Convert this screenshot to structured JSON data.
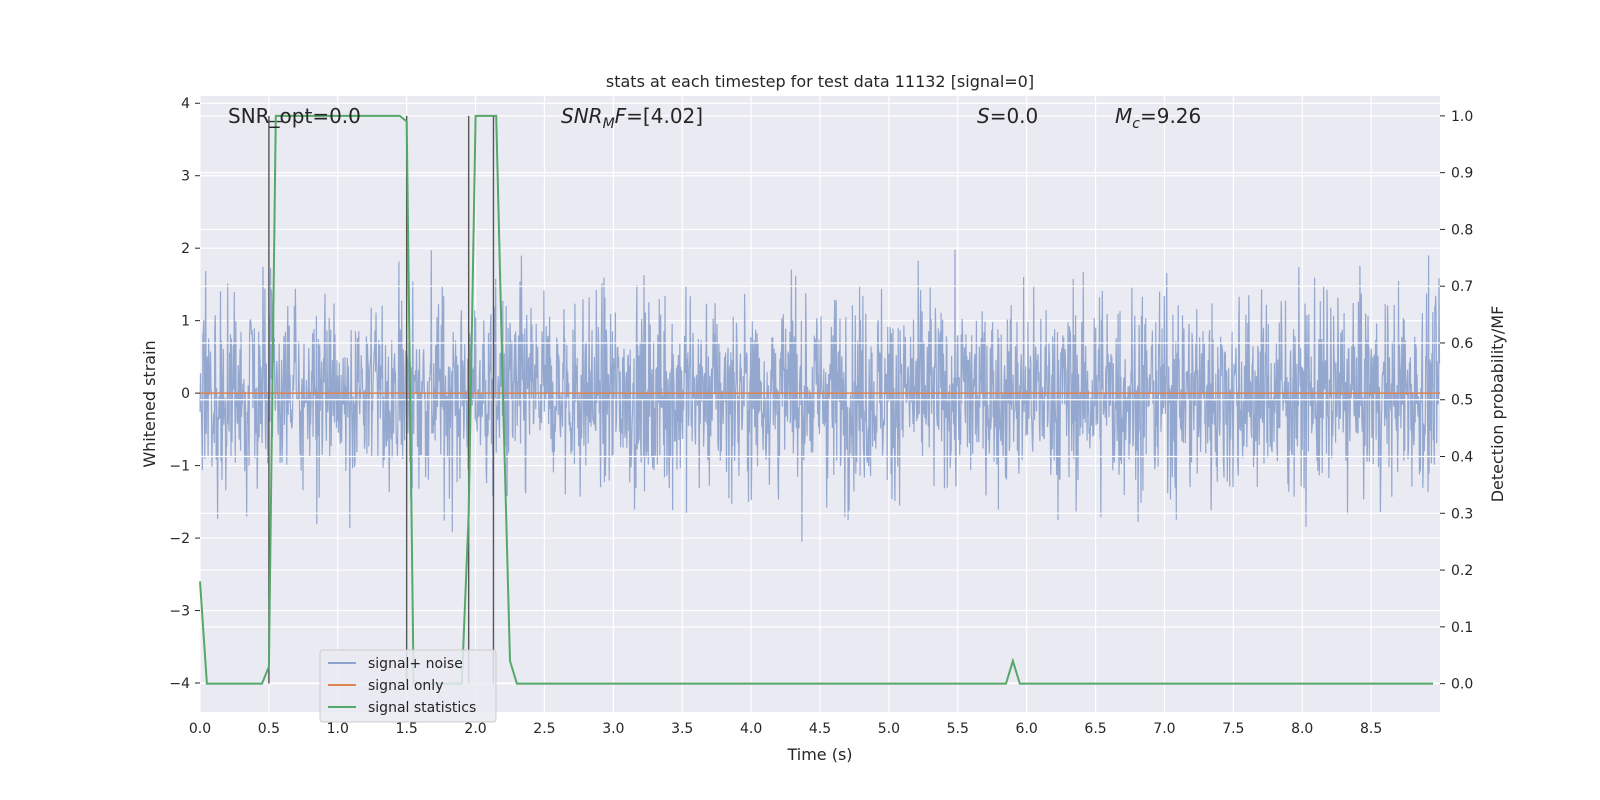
{
  "chart_data": {
    "type": "line",
    "title": "stats at each timestep for test data 11132 [signal=0]",
    "xlabel": "Time (s)",
    "ylabel": "Whitened strain",
    "ylabel_right": "Detection probability/MF",
    "xlim": [
      0.0,
      9.0
    ],
    "ylim": [
      -4.4,
      4.1
    ],
    "ylim_right": [
      -0.05,
      1.035
    ],
    "xticks": [
      "0.0",
      "0.5",
      "1.0",
      "1.5",
      "2.0",
      "2.5",
      "3.0",
      "3.5",
      "4.0",
      "4.5",
      "5.0",
      "5.5",
      "6.0",
      "6.5",
      "7.0",
      "7.5",
      "8.0",
      "8.5"
    ],
    "xtick_values": [
      0.0,
      0.5,
      1.0,
      1.5,
      2.0,
      2.5,
      3.0,
      3.5,
      4.0,
      4.5,
      5.0,
      5.5,
      6.0,
      6.5,
      7.0,
      7.5,
      8.0,
      8.5
    ],
    "yticks": [
      "−4",
      "−3",
      "−2",
      "−1",
      "0",
      "1",
      "2",
      "3",
      "4"
    ],
    "ytick_values": [
      -4,
      -3,
      -2,
      -1,
      0,
      1,
      2,
      3,
      4
    ],
    "yticks_right": [
      "0.0",
      "0.1",
      "0.2",
      "0.3",
      "0.4",
      "0.5",
      "0.6",
      "0.7",
      "0.8",
      "0.9",
      "1.0"
    ],
    "ytick_right_values": [
      0.0,
      0.1,
      0.2,
      0.3,
      0.4,
      0.5,
      0.6,
      0.7,
      0.8,
      0.9,
      1.0
    ],
    "grid": true,
    "legend_position": "lower-left",
    "annotations": [
      {
        "text": "SNR_opt=0.0",
        "x": 0.2,
        "y": 3.7
      },
      {
        "text": "SNR_MF=[4.02]",
        "x": 2.6,
        "y": 3.7
      },
      {
        "text": "S=0.0",
        "x": 5.6,
        "y": 3.7
      },
      {
        "text": "M_c=9.26",
        "x": 6.6,
        "y": 3.7
      }
    ],
    "vertical_markers": [
      0.5,
      1.5,
      1.95,
      2.13
    ],
    "series": [
      {
        "name": "signal+ noise",
        "color": "#8fa4cc",
        "kind": "noise",
        "amplitude_bulk": 1.5,
        "amplitude_peak": 3.6
      },
      {
        "name": "signal only",
        "color": "#dd8452",
        "kind": "flat",
        "y": 0.0
      },
      {
        "name": "signal statistics",
        "color": "#55a868",
        "axis": "right",
        "x": [
          0.0,
          0.05,
          0.1,
          0.45,
          0.5,
          0.55,
          0.6,
          1.45,
          1.5,
          1.55,
          1.9,
          1.95,
          2.0,
          2.1,
          2.15,
          2.2,
          2.25,
          2.3,
          5.8,
          5.85,
          5.9,
          5.95,
          6.0,
          8.95
        ],
        "y": [
          0.18,
          0.0,
          0.0,
          0.0,
          0.03,
          1.0,
          1.0,
          1.0,
          0.99,
          0.0,
          0.0,
          0.3,
          1.0,
          1.0,
          1.0,
          0.5,
          0.04,
          0.0,
          0.0,
          0.0,
          0.04,
          0.0,
          0.0,
          0.0
        ]
      }
    ]
  }
}
